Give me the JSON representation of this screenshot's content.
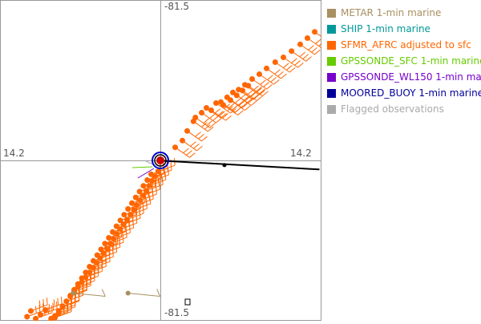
{
  "colors": {
    "sfmr": "#ff6600",
    "center_black": "#000000",
    "center_blue": "#0000cc",
    "center_red": "#cc0000",
    "frame": "#999999",
    "axes": "#999999",
    "label_text": "#555555"
  },
  "axis_labels": {
    "top": "-81.5",
    "bottom": "-81.5",
    "left": "14.2",
    "right": "14.2"
  },
  "legend": [
    {
      "label": "METAR 1-min marine",
      "color": "#a89060"
    },
    {
      "label": "SHIP 1-min marine",
      "color": "#009999"
    },
    {
      "label": "SFMR_AFRC adjusted to sfc",
      "color": "#ff6600"
    },
    {
      "label": "GPSSONDE_SFC 1-min marine",
      "color": "#66cc00"
    },
    {
      "label": "GPSSONDE_WL150 1-min marine",
      "color": "#7700cc"
    },
    {
      "label": "MOORED_BUOY 1-min marine",
      "color": "#000099"
    },
    {
      "label": "Flagged observations",
      "color": "#aaaaaa"
    }
  ],
  "chart_data": {
    "type": "scatter",
    "title": "",
    "xlabel": "",
    "ylabel": "",
    "center": {
      "lon": -81.5,
      "lat": 14.2
    },
    "xlim": [
      -3.3,
      3.3
    ],
    "ylim": [
      -3.3,
      3.3
    ],
    "x_unit": "relative position",
    "y_unit": "relative position",
    "series": [
      {
        "name": "SFMR_AFRC adjusted to sfc",
        "color": "#ff6600",
        "track": "sw_leg",
        "points": [
          [
            -0.05,
            -0.22
          ],
          [
            -0.12,
            -0.32
          ],
          [
            -0.18,
            -0.42
          ],
          [
            -0.24,
            -0.52
          ],
          [
            -0.3,
            -0.62
          ],
          [
            -0.36,
            -0.72
          ],
          [
            -0.43,
            -0.82
          ],
          [
            -0.5,
            -0.92
          ],
          [
            -0.56,
            -1.02
          ],
          [
            -0.63,
            -1.12
          ],
          [
            -0.7,
            -1.22
          ],
          [
            -0.77,
            -1.32
          ],
          [
            -0.84,
            -1.42
          ],
          [
            -0.91,
            -1.52
          ],
          [
            -0.98,
            -1.62
          ],
          [
            -1.05,
            -1.72
          ],
          [
            -1.12,
            -1.82
          ],
          [
            -1.19,
            -1.92
          ],
          [
            -1.26,
            -2.02
          ],
          [
            -1.33,
            -2.12
          ],
          [
            -1.4,
            -2.22
          ],
          [
            -1.48,
            -2.32
          ],
          [
            -1.56,
            -2.42
          ],
          [
            -1.64,
            -2.52
          ],
          [
            -1.72,
            -2.62
          ],
          [
            -1.8,
            -2.72
          ],
          [
            -1.88,
            -2.82
          ],
          [
            -1.96,
            -2.92
          ],
          [
            -2.04,
            -3.02
          ],
          [
            -2.12,
            -3.12
          ],
          [
            -2.2,
            -3.22
          ],
          [
            -2.28,
            -3.28
          ],
          [
            -0.2,
            -0.28
          ],
          [
            -0.28,
            -0.4
          ],
          [
            -0.36,
            -0.52
          ],
          [
            -0.44,
            -0.64
          ],
          [
            -0.52,
            -0.76
          ],
          [
            -0.6,
            -0.88
          ],
          [
            -0.68,
            -1.0
          ],
          [
            -0.76,
            -1.12
          ],
          [
            -0.84,
            -1.24
          ],
          [
            -0.92,
            -1.36
          ],
          [
            -1.0,
            -1.48
          ],
          [
            -1.08,
            -1.6
          ],
          [
            -1.16,
            -1.72
          ],
          [
            -1.24,
            -1.84
          ],
          [
            -1.32,
            -1.96
          ],
          [
            -1.4,
            -2.08
          ],
          [
            -1.48,
            -2.2
          ],
          [
            -1.56,
            -2.32
          ],
          [
            -1.64,
            -2.44
          ],
          [
            -1.72,
            -2.56
          ],
          [
            -1.8,
            -2.68
          ],
          [
            -1.88,
            -2.8
          ],
          [
            -1.96,
            -2.92
          ],
          [
            -2.04,
            -3.04
          ],
          [
            -2.12,
            -3.16
          ],
          [
            -2.2,
            -3.26
          ],
          [
            -2.4,
            -3.1
          ],
          [
            -2.5,
            -3.2
          ],
          [
            -2.6,
            -3.28
          ],
          [
            -2.7,
            -3.12
          ],
          [
            -2.78,
            -3.24
          ]
        ]
      },
      {
        "name": "SFMR_AFRC adjusted to sfc",
        "color": "#ff6600",
        "track": "ne_leg",
        "points": [
          [
            0.3,
            0.28
          ],
          [
            0.45,
            0.42
          ],
          [
            0.55,
            0.62
          ],
          [
            0.68,
            0.82
          ],
          [
            0.72,
            0.9
          ],
          [
            0.85,
            1.0
          ],
          [
            0.95,
            1.1
          ],
          [
            1.05,
            1.05
          ],
          [
            1.15,
            1.2
          ],
          [
            1.25,
            1.22
          ],
          [
            1.38,
            1.32
          ],
          [
            1.5,
            1.42
          ],
          [
            1.62,
            1.48
          ],
          [
            1.75,
            1.58
          ],
          [
            1.9,
            1.7
          ],
          [
            2.05,
            1.8
          ],
          [
            2.2,
            1.92
          ],
          [
            2.38,
            2.05
          ],
          [
            2.55,
            2.15
          ],
          [
            2.72,
            2.28
          ],
          [
            2.9,
            2.42
          ],
          [
            3.05,
            2.55
          ],
          [
            3.2,
            2.68
          ],
          [
            1.3,
            1.16
          ],
          [
            1.45,
            1.26
          ],
          [
            1.58,
            1.36
          ],
          [
            1.7,
            1.46
          ],
          [
            1.82,
            1.56
          ]
        ]
      },
      {
        "name": "METAR 1-min marine",
        "color": "#a89060",
        "points": [
          [
            -1.82,
            -2.75
          ],
          [
            -0.68,
            -2.75
          ]
        ]
      }
    ],
    "tracks": [
      {
        "name": "flight track",
        "color": "#000000",
        "points": [
          [
            0.05,
            0.0
          ],
          [
            3.3,
            -0.18
          ]
        ]
      }
    ],
    "grid": false,
    "legend_position": "right"
  }
}
